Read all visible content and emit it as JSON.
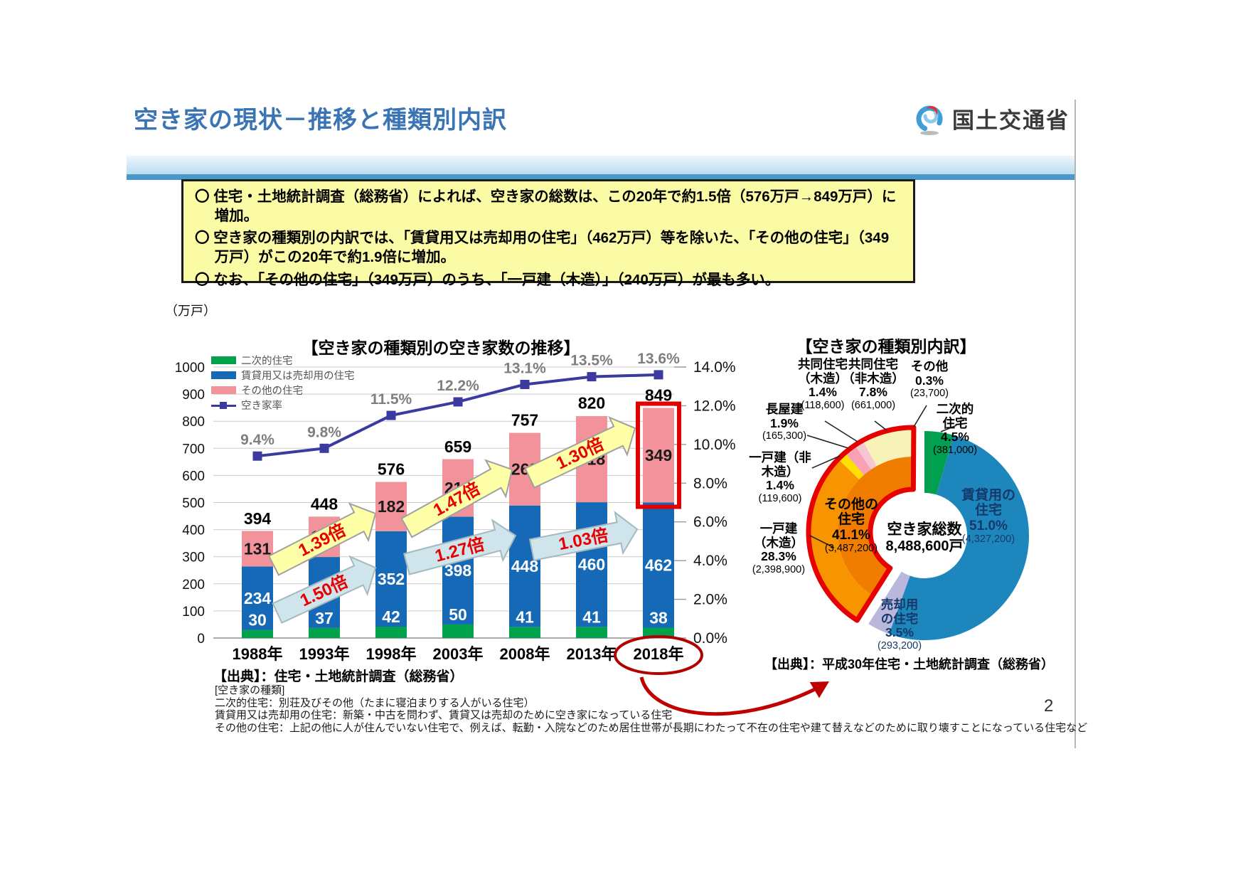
{
  "page_number": "2",
  "header": {
    "title": "空き家の現状－推移と種類別内訳",
    "agency": "国土交通省"
  },
  "summary_box": {
    "bullets": [
      "〇 住宅・土地統計調査（総務省）によれば、空き家の総数は、この20年で約1.5倍（576万戸→849万戸）に増加。",
      "〇 空き家の種類別の内訳では、「賃貸用又は売却用の住宅」（462万戸）等を除いた、「その他の住宅」（349万戸）がこの20年で約1.9倍に増加。",
      "〇 なお、「その他の住宅」（349万戸）のうち、「一戸建（木造）」（240万戸）が最も多い。"
    ]
  },
  "chart_data": [
    {
      "type": "bar",
      "title": "【空き家の種類別の空き家数の推移】",
      "unit_label": "（万戸）",
      "categories": [
        "1988年",
        "1993年",
        "1998年",
        "2003年",
        "2008年",
        "2013年",
        "2018年"
      ],
      "series": [
        {
          "name": "二次的住宅",
          "color": "#00a24b",
          "values": [
            30,
            37,
            42,
            50,
            41,
            41,
            38
          ]
        },
        {
          "name": "賃貸用又は売却用の住宅",
          "color": "#1569b7",
          "values": [
            234,
            262,
            352,
            398,
            448,
            460,
            462
          ]
        },
        {
          "name": "その他の住宅",
          "color": "#f2939b",
          "values": [
            131,
            149,
            182,
            212,
            268,
            318,
            349
          ]
        }
      ],
      "totals": [
        394,
        448,
        576,
        659,
        757,
        820,
        849
      ],
      "line": {
        "name": "空き家率",
        "color": "#3a3aa0",
        "values": [
          9.4,
          9.8,
          11.5,
          12.2,
          13.1,
          13.5,
          13.6
        ]
      },
      "ylim": [
        0,
        1000
      ],
      "ystep": 100,
      "y2lim": [
        0,
        14
      ],
      "y2step": 2,
      "grid": true,
      "annotations": {
        "other_growth": [
          "1.39倍",
          "1.47倍",
          "1.30倍"
        ],
        "rental_growth": [
          "1.50倍",
          "1.27倍",
          "1.03倍"
        ]
      },
      "highlight_year": "2018年",
      "source": "【出典】：住宅・土地統計調査（総務省）"
    },
    {
      "type": "pie",
      "title": "【空き家の種類別内訳】",
      "center_label": "空き家総数",
      "center_value": "8,488,600戸",
      "segments": [
        {
          "name": "二次的住宅",
          "name_lines": [
            "二次的",
            "住宅"
          ],
          "pct": 4.5,
          "count": "(381,000)",
          "color": "#00a050"
        },
        {
          "name": "賃貸用の住宅",
          "name_lines": [
            "賃貸用の",
            "住宅"
          ],
          "pct": 51.0,
          "count": "(4,327,200)",
          "color": "#1d87bd"
        },
        {
          "name": "売却用の住宅",
          "name_lines": [
            "売却用",
            "の住宅"
          ],
          "pct": 3.5,
          "count": "(293,200)",
          "color": "#b9b7dc"
        },
        {
          "name": "その他の住宅",
          "name_lines": [
            "その他の",
            "住宅"
          ],
          "pct": 41.1,
          "count": "(3,487,200)",
          "color": "#f07c00",
          "exploded": true
        }
      ],
      "sub_segments": [
        {
          "name": "一戸建（木造）",
          "name_lines": [
            "一戸建",
            "（木造）"
          ],
          "pct": 28.3,
          "count": "(2,398,900)",
          "color": "#f79400"
        },
        {
          "name": "一戸建（非木造）",
          "name_lines": [
            "一戸建（非",
            "木造）"
          ],
          "pct": 1.4,
          "count": "(119,600)",
          "color": "#ffe100"
        },
        {
          "name": "長屋建",
          "name_lines": [
            "長屋建"
          ],
          "pct": 1.9,
          "count": "(165,300)",
          "color": "#f8a0b4"
        },
        {
          "name": "共同住宅（木造）",
          "name_lines": [
            "共同住宅",
            "（木造）"
          ],
          "pct": 1.4,
          "count": "(118,600)",
          "color": "#f6c6d2"
        },
        {
          "name": "共同住宅（非木造）",
          "name_lines": [
            "共同住宅",
            "（非木造）"
          ],
          "pct": 7.8,
          "count": "(661,000)",
          "color": "#f6f2b8"
        },
        {
          "name": "その他",
          "name_lines": [
            "その他"
          ],
          "pct": 0.3,
          "count": "(23,700)",
          "color": "#ffffff"
        }
      ],
      "source": "【出典】：平成30年住宅・土地統計調査（総務省）"
    }
  ],
  "footnotes": {
    "heading": "[空き家の種類]",
    "lines": [
      "二次的住宅：別荘及びその他（たまに寝泊まりする人がいる住宅）",
      "賃貸用又は売却用の住宅：新築・中古を問わず、賃貸又は売却のために空き家になっている住宅",
      "その他の住宅：上記の他に人が住んでいない住宅で、例えば、転勤・入院などのため居住世帯が長期にわたって不在の住宅や建て替えなどのために取り壊すことになっている住宅など"
    ]
  }
}
